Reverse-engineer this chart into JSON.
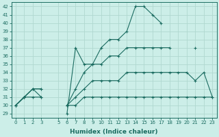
{
  "xlabel": "Humidex (Indice chaleur)",
  "bg_color": "#cceee8",
  "grid_color": "#b0d8d0",
  "line_color": "#1a6b60",
  "xlim": [
    -0.5,
    23.5
  ],
  "ylim": [
    28.5,
    42.5
  ],
  "xticks": [
    0,
    1,
    2,
    3,
    5,
    6,
    7,
    8,
    9,
    10,
    11,
    12,
    13,
    14,
    15,
    16,
    17,
    18,
    19,
    20,
    21,
    22,
    23
  ],
  "yticks": [
    29,
    30,
    31,
    32,
    33,
    34,
    35,
    36,
    37,
    38,
    39,
    40,
    41,
    42
  ],
  "series": [
    [
      30,
      31,
      32,
      31,
      null,
      null,
      29,
      37,
      35,
      35,
      37,
      38,
      38,
      39,
      42,
      42,
      41,
      40,
      null,
      null,
      null,
      null,
      null,
      null
    ],
    [
      30,
      31,
      32,
      32,
      null,
      null,
      30,
      32,
      34,
      35,
      35,
      36,
      36,
      37,
      37,
      37,
      37,
      37,
      37,
      null,
      null,
      37,
      null,
      null
    ],
    [
      30,
      31,
      32,
      32,
      null,
      null,
      30,
      31,
      32,
      33,
      33,
      33,
      33,
      34,
      34,
      34,
      34,
      34,
      34,
      34,
      34,
      33,
      34,
      31
    ],
    [
      30,
      31,
      31,
      31,
      null,
      null,
      30,
      30,
      31,
      31,
      31,
      31,
      31,
      31,
      31,
      31,
      31,
      31,
      31,
      31,
      31,
      31,
      31,
      31
    ]
  ]
}
